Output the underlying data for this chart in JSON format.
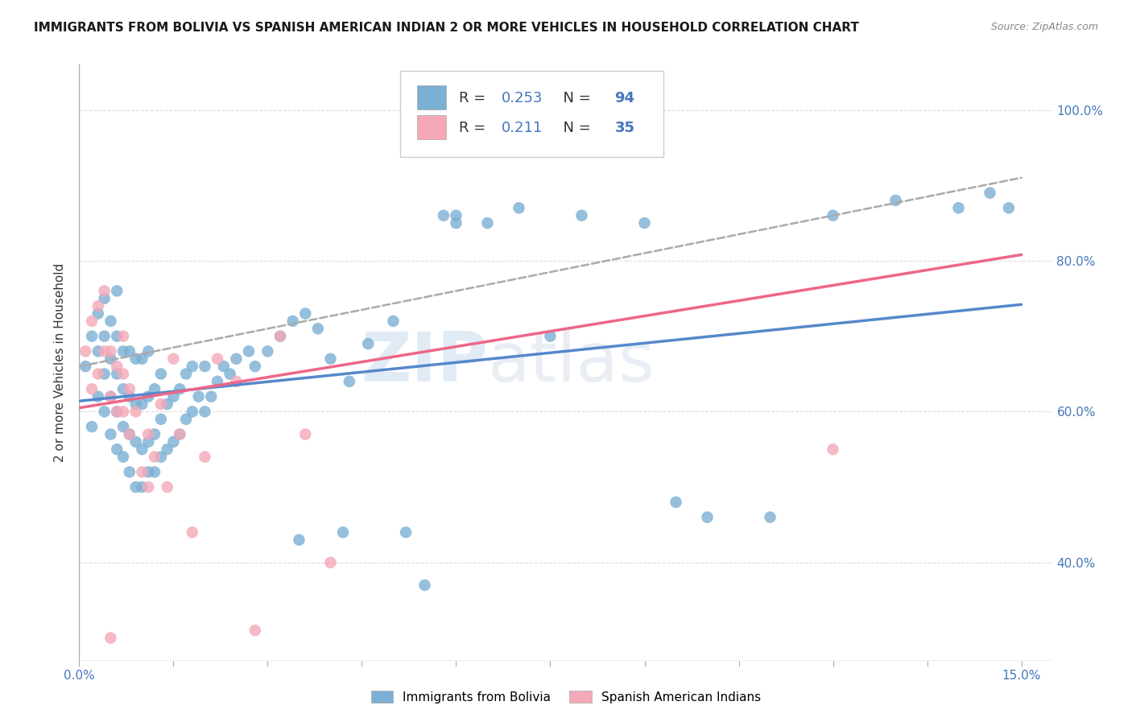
{
  "title": "IMMIGRANTS FROM BOLIVIA VS SPANISH AMERICAN INDIAN 2 OR MORE VEHICLES IN HOUSEHOLD CORRELATION CHART",
  "source": "Source: ZipAtlas.com",
  "legend_label1": "Immigrants from Bolivia",
  "legend_label2": "Spanish American Indians",
  "ylabel": "2 or more Vehicles in Household",
  "R1": 0.253,
  "N1": 94,
  "R2": 0.211,
  "N2": 35,
  "color_blue": "#7BAFD4",
  "color_pink": "#F4A8B8",
  "color_blue_line": "#5588CC",
  "color_pink_line": "#EE6688",
  "color_dash": "#AAAAAA",
  "color_text_blue": "#4477BB",
  "xlim_low": 0.0,
  "xlim_high": 0.155,
  "ylim_low": 0.27,
  "ylim_high": 1.06,
  "yticks": [
    0.4,
    0.6,
    0.8,
    1.0
  ],
  "yticklabels": [
    "40.0%",
    "60.0%",
    "80.0%",
    "100.0%"
  ],
  "xtick_left_label": "0.0%",
  "xtick_right_label": "15.0%",
  "blue_x": [
    0.001,
    0.002,
    0.002,
    0.003,
    0.003,
    0.003,
    0.004,
    0.004,
    0.004,
    0.004,
    0.005,
    0.005,
    0.005,
    0.005,
    0.006,
    0.006,
    0.006,
    0.006,
    0.006,
    0.007,
    0.007,
    0.007,
    0.007,
    0.008,
    0.008,
    0.008,
    0.008,
    0.009,
    0.009,
    0.009,
    0.009,
    0.01,
    0.01,
    0.01,
    0.01,
    0.011,
    0.011,
    0.011,
    0.011,
    0.012,
    0.012,
    0.012,
    0.013,
    0.013,
    0.013,
    0.014,
    0.014,
    0.015,
    0.015,
    0.016,
    0.016,
    0.017,
    0.017,
    0.018,
    0.018,
    0.019,
    0.02,
    0.02,
    0.021,
    0.022,
    0.023,
    0.024,
    0.025,
    0.027,
    0.028,
    0.03,
    0.032,
    0.034,
    0.036,
    0.038,
    0.04,
    0.043,
    0.046,
    0.05,
    0.055,
    0.06,
    0.065,
    0.07,
    0.08,
    0.09,
    0.095,
    0.1,
    0.11,
    0.12,
    0.13,
    0.14,
    0.145,
    0.148,
    0.06,
    0.075,
    0.035,
    0.042,
    0.052,
    0.058
  ],
  "blue_y": [
    0.66,
    0.58,
    0.7,
    0.62,
    0.68,
    0.73,
    0.6,
    0.65,
    0.7,
    0.75,
    0.57,
    0.62,
    0.67,
    0.72,
    0.55,
    0.6,
    0.65,
    0.7,
    0.76,
    0.54,
    0.58,
    0.63,
    0.68,
    0.52,
    0.57,
    0.62,
    0.68,
    0.5,
    0.56,
    0.61,
    0.67,
    0.5,
    0.55,
    0.61,
    0.67,
    0.52,
    0.56,
    0.62,
    0.68,
    0.52,
    0.57,
    0.63,
    0.54,
    0.59,
    0.65,
    0.55,
    0.61,
    0.56,
    0.62,
    0.57,
    0.63,
    0.59,
    0.65,
    0.6,
    0.66,
    0.62,
    0.6,
    0.66,
    0.62,
    0.64,
    0.66,
    0.65,
    0.67,
    0.68,
    0.66,
    0.68,
    0.7,
    0.72,
    0.73,
    0.71,
    0.67,
    0.64,
    0.69,
    0.72,
    0.37,
    0.86,
    0.85,
    0.87,
    0.86,
    0.85,
    0.48,
    0.46,
    0.46,
    0.86,
    0.88,
    0.87,
    0.89,
    0.87,
    0.85,
    0.7,
    0.43,
    0.44,
    0.44,
    0.86
  ],
  "pink_x": [
    0.001,
    0.002,
    0.002,
    0.003,
    0.003,
    0.004,
    0.004,
    0.005,
    0.005,
    0.006,
    0.006,
    0.007,
    0.007,
    0.007,
    0.008,
    0.008,
    0.009,
    0.01,
    0.011,
    0.011,
    0.012,
    0.013,
    0.014,
    0.015,
    0.016,
    0.018,
    0.02,
    0.022,
    0.025,
    0.028,
    0.032,
    0.036,
    0.04,
    0.12,
    0.005
  ],
  "pink_y": [
    0.68,
    0.63,
    0.72,
    0.65,
    0.74,
    0.68,
    0.76,
    0.62,
    0.68,
    0.6,
    0.66,
    0.6,
    0.65,
    0.7,
    0.57,
    0.63,
    0.6,
    0.52,
    0.5,
    0.57,
    0.54,
    0.61,
    0.5,
    0.67,
    0.57,
    0.44,
    0.54,
    0.67,
    0.64,
    0.31,
    0.7,
    0.57,
    0.4,
    0.55,
    0.3
  ],
  "blue_trend_x": [
    0.0,
    0.15
  ],
  "blue_trend_y": [
    0.614,
    0.742
  ],
  "pink_trend_x": [
    0.0,
    0.15
  ],
  "pink_trend_y": [
    0.605,
    0.808
  ],
  "dash_trend_x": [
    0.0,
    0.15
  ],
  "dash_trend_y": [
    0.66,
    0.91
  ]
}
